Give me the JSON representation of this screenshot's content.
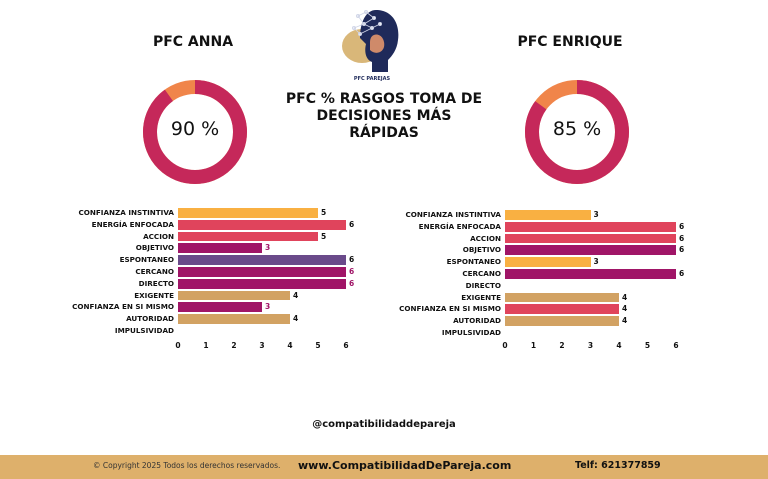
{
  "logo": {
    "caption": "PFC PAREJAS"
  },
  "title": "PFC % RASGOS TOMA DE DECISIONES MÁS RÁPIDAS",
  "left": {
    "name": "PFC ANNA",
    "percent_label": "90 %"
  },
  "right": {
    "name": "PFC ENRIQUE",
    "percent_label": "85 %"
  },
  "colors": {
    "donut": "#c5285a",
    "donut_rest": "#f0854a"
  },
  "chart_data": [
    {
      "type": "bar",
      "orientation": "horizontal",
      "title": "",
      "categories": [
        "CONFIANZA INSTINTIVA",
        "ENERGÍA ENFOCADA",
        "ACCION",
        "OBJETIVO",
        "ESPONTANEO",
        "CERCANO",
        "DIRECTO",
        "EXIGENTE",
        "CONFIANZA EN SI MISMO",
        "AUTORIDAD",
        "IMPULSIVIDAD"
      ],
      "values": [
        5,
        6,
        5,
        3,
        6,
        6,
        6,
        4,
        3,
        4,
        0
      ],
      "value_labels": [
        "5",
        "6",
        "5",
        "3",
        "6",
        "6",
        "6",
        "4",
        "3",
        "4",
        ""
      ],
      "bar_colors": [
        "#f9b042",
        "#e0445c",
        "#e0445c",
        "#a01567",
        "#6a4a8a",
        "#a01567",
        "#a01567",
        "#d2a263",
        "#a01567",
        "#d2a263",
        "#d2a263"
      ],
      "label_colors": [
        "#111111",
        "#111111",
        "#111111",
        "#a01567",
        "#111111",
        "#a01567",
        "#a01567",
        "#111111",
        "#a01567",
        "#111111",
        "#111111"
      ],
      "xticks": [
        0,
        1,
        2,
        3,
        4,
        5,
        6
      ],
      "xlim": [
        0,
        6
      ]
    },
    {
      "type": "bar",
      "orientation": "horizontal",
      "title": "",
      "categories": [
        "CONFIANZA INSTINTIVA",
        "ENERGÍA ENFOCADA",
        "ACCION",
        "OBJETIVO",
        "ESPONTANEO",
        "CERCANO",
        "DIRECTO",
        "EXIGENTE",
        "CONFIANZA EN SI MISMO",
        "AUTORIDAD",
        "IMPULSIVIDAD"
      ],
      "values": [
        3,
        6,
        6,
        6,
        3,
        6,
        0,
        4,
        4,
        4,
        0
      ],
      "value_labels": [
        "3",
        "6",
        "6",
        "6",
        "3",
        "6",
        "",
        "4",
        "4",
        "4",
        ""
      ],
      "bar_colors": [
        "#f9b042",
        "#e0445c",
        "#e0445c",
        "#a01567",
        "#f9b042",
        "#a01567",
        "#a01567",
        "#d2a263",
        "#e0445c",
        "#d2a263",
        "#d2a263"
      ],
      "label_colors": [
        "#111111",
        "#111111",
        "#111111",
        "#111111",
        "#111111",
        "#111111",
        "#111111",
        "#111111",
        "#111111",
        "#111111",
        "#111111"
      ],
      "xticks": [
        0,
        1,
        2,
        3,
        4,
        5,
        6
      ],
      "xlim": [
        0,
        6
      ]
    }
  ],
  "handle": "@compatibilidaddepareja",
  "footer": {
    "copyright": "© Copyright 2025 Todos los derechos reservados.",
    "website": "www.CompatibilidadDePareja.com",
    "phone": "Telf: 621377859"
  }
}
